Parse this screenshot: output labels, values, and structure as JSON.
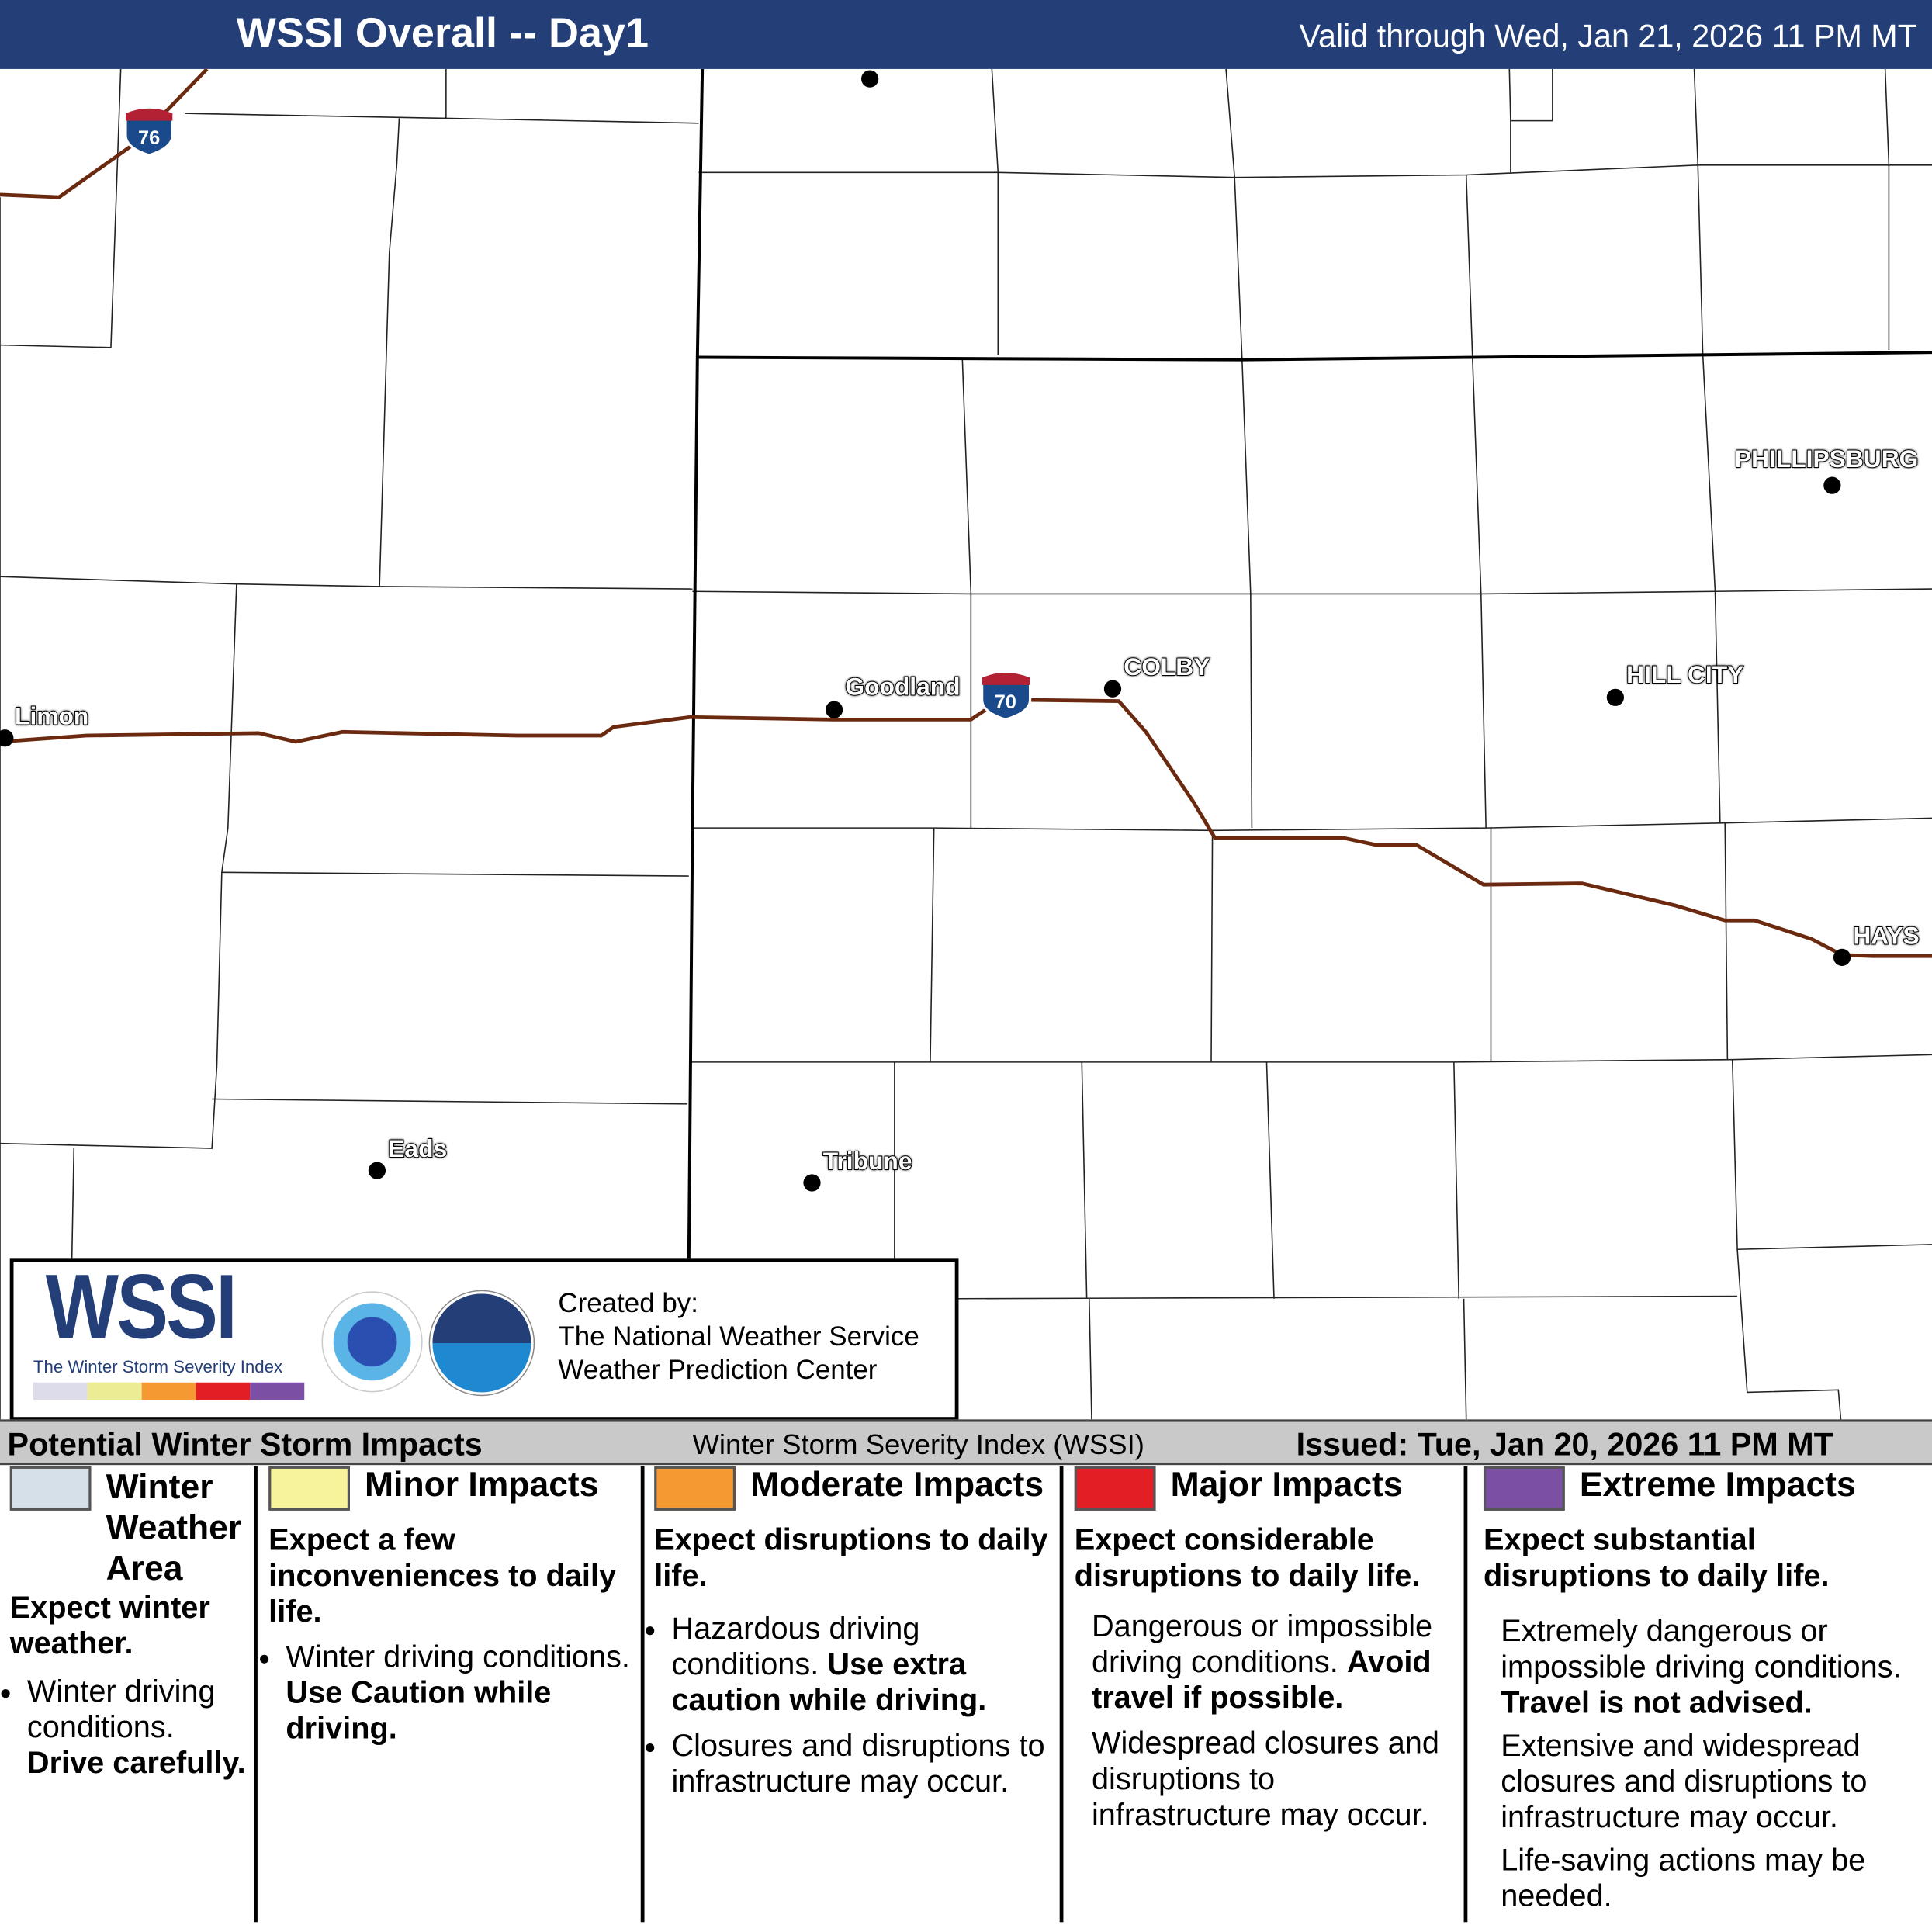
{
  "header": {
    "title": "WSSI Overall -- Day1",
    "valid": "Valid through Wed, Jan 21, 2026 11 PM MT"
  },
  "map": {
    "cities": [
      "Limon",
      "Goodland",
      "COLBY",
      "PHILLIPSBURG",
      "HILL CITY",
      "HAYS",
      "Eads",
      "Tribune"
    ],
    "interstates": [
      "76",
      "70"
    ],
    "road_color": "#6b2a10"
  },
  "logo": {
    "brand": "WSSI",
    "subtitle": "The Winter Storm Severity Index",
    "created_by": "Created by:",
    "org1": "The National Weather Service",
    "org2": "Weather Prediction Center",
    "nws_seal": "NATIONAL WEATHER SERVICE",
    "noaa_seal": "NOAA"
  },
  "legend_header": {
    "left": "Potential Winter Storm Impacts",
    "center": "Winter Storm Severity Index (WSSI)",
    "right": "Issued: Tue, Jan 20, 2026 11 PM MT"
  },
  "categories": [
    {
      "name": "Winter Weather Area",
      "color": "#d5e0e8",
      "summary": "Expect winter weather.",
      "bullet": "Winter driving conditions.",
      "bold": "Drive carefully."
    },
    {
      "name": "Minor Impacts",
      "color": "#f7f39c",
      "summary": "Expect a few inconveniences to daily life.",
      "bullet": "Winter driving conditions.",
      "bold": "Use Caution while driving."
    },
    {
      "name": "Moderate Impacts",
      "color": "#f59a32",
      "summary": "Expect disruptions to daily life.",
      "bullet": "Hazardous driving conditions.",
      "bold": "Use extra caution while driving.",
      "bullet2": "Closures and disruptions to infrastructure may occur."
    },
    {
      "name": "Major Impacts",
      "color": "#e31e24",
      "summary": "Expect considerable disruptions to daily life.",
      "p1": "Dangerous or impossible driving conditions.",
      "bold": "Avoid travel if possible.",
      "p2": "Widespread closures and disruptions to infrastructure may occur."
    },
    {
      "name": "Extreme Impacts",
      "color": "#7b4fa3",
      "summary": "Expect substantial disruptions to daily life.",
      "p1": "Extremely dangerous or impossible driving conditions.",
      "bold": "Travel is not advised.",
      "p2": "Extensive and widespread closures and disruptions to infrastructure may occur.",
      "p3": "Life-saving actions may be needed."
    }
  ]
}
